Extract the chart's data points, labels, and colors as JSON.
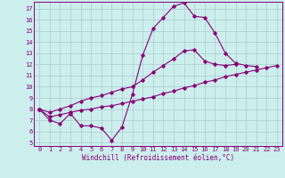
{
  "bg_color": "#cceeed",
  "grid_color": "#aacccc",
  "line_color": "#880077",
  "xlabel": "Windchill (Refroidissement éolien,°C)",
  "xlim": [
    -0.5,
    23.5
  ],
  "ylim": [
    4.7,
    17.6
  ],
  "yticks": [
    5,
    6,
    7,
    8,
    9,
    10,
    11,
    12,
    13,
    14,
    15,
    16,
    17
  ],
  "xticks": [
    0,
    1,
    2,
    3,
    4,
    5,
    6,
    7,
    8,
    9,
    10,
    11,
    12,
    13,
    14,
    15,
    16,
    17,
    18,
    19,
    20,
    21,
    22,
    23
  ],
  "line1_x": [
    0,
    1,
    2,
    3,
    4,
    5,
    6,
    7,
    8,
    9,
    10,
    11,
    12,
    13,
    14,
    15,
    16,
    17,
    18,
    19,
    20,
    21
  ],
  "line1_y": [
    8.0,
    7.0,
    6.7,
    7.6,
    6.5,
    6.5,
    6.3,
    5.2,
    6.4,
    9.3,
    12.8,
    15.2,
    16.2,
    17.2,
    17.5,
    16.3,
    16.2,
    14.8,
    13.0,
    12.1,
    11.9,
    11.8
  ],
  "line2_x": [
    0,
    1,
    2,
    3,
    4,
    5,
    6,
    7,
    8,
    9,
    10,
    11,
    12,
    13,
    14,
    15,
    16,
    17,
    18,
    19,
    20,
    21,
    22,
    23
  ],
  "line2_y": [
    8.0,
    7.3,
    7.5,
    7.7,
    7.9,
    8.0,
    8.2,
    8.3,
    8.5,
    8.7,
    8.9,
    9.1,
    9.4,
    9.6,
    9.9,
    10.1,
    10.4,
    10.6,
    10.9,
    11.1,
    11.3,
    11.5,
    11.7,
    11.9
  ],
  "line3_x": [
    0,
    1,
    2,
    3,
    4,
    5,
    6,
    7,
    8,
    9,
    10,
    11,
    12,
    13,
    14,
    15,
    16,
    17,
    18,
    19
  ],
  "line3_y": [
    8.0,
    7.7,
    8.0,
    8.3,
    8.7,
    9.0,
    9.2,
    9.5,
    9.8,
    10.0,
    10.6,
    11.3,
    11.9,
    12.5,
    13.2,
    13.3,
    12.3,
    12.0,
    11.9,
    12.0
  ]
}
